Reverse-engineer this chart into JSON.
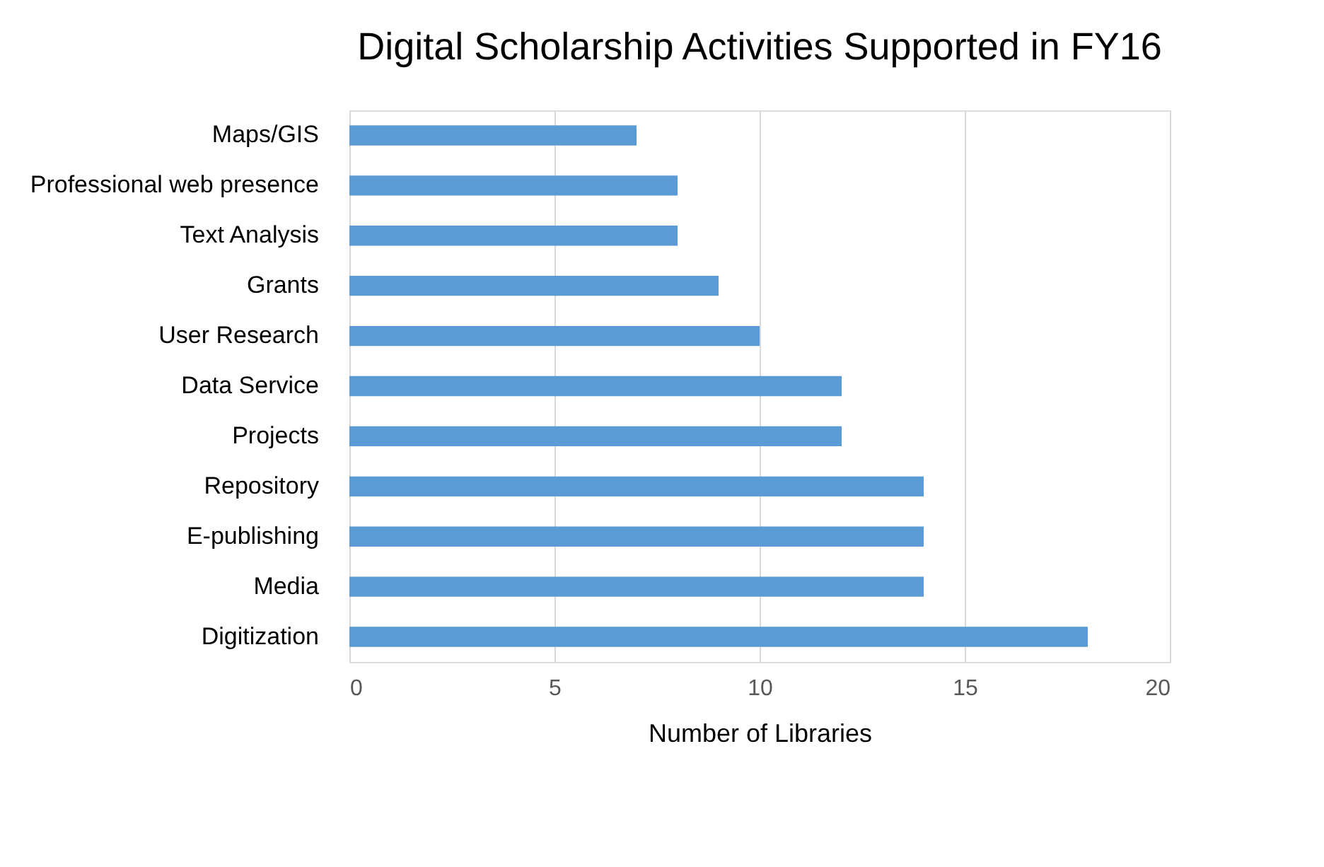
{
  "chart_data": {
    "type": "bar",
    "orientation": "horizontal",
    "title": "Digital Scholarship Activities Supported in FY16",
    "xlabel": "Number of Libraries",
    "categories": [
      "Maps/GIS",
      "Professional web presence",
      "Text Analysis",
      "Grants",
      "User Research",
      "Data Service",
      "Projects",
      "Repository",
      "E-publishing",
      "Media",
      "Digitization"
    ],
    "values": [
      7,
      8,
      8,
      9,
      10,
      12,
      12,
      14,
      14,
      14,
      18
    ],
    "color": "#5b9bd5",
    "xlim": [
      0,
      20
    ],
    "xticks": [
      0,
      5,
      10,
      15,
      20
    ],
    "grid": "x"
  }
}
